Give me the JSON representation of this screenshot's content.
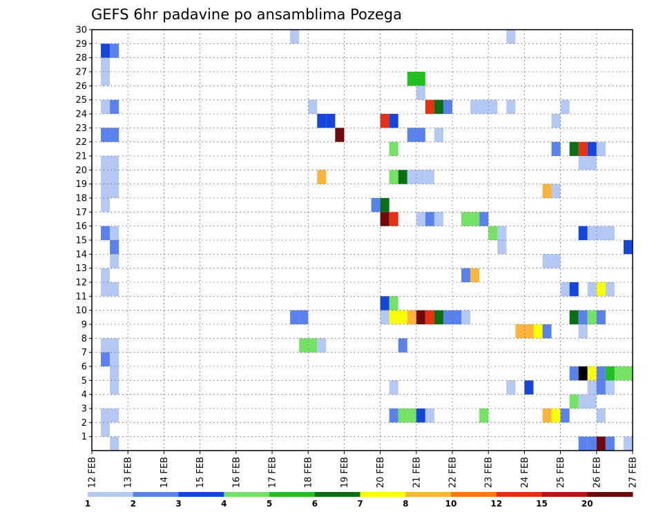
{
  "chart_data": {
    "type": "heatmap",
    "title": "GEFS 6hr padavine po ansamblima Pozega",
    "xlabel": "",
    "ylabel": "",
    "x_ticks": [
      "12 FEB",
      "13 FEB",
      "14 FEB",
      "15 FEB",
      "16 FEB",
      "17 FEB",
      "18 FEB",
      "19 FEB",
      "20 FEB",
      "21 FEB",
      "22 FEB",
      "23 FEB",
      "24 FEB",
      "25 FEB",
      "26 FEB",
      "27 FEB"
    ],
    "xlim_days": [
      12,
      27
    ],
    "y_ticks": [
      1,
      2,
      3,
      4,
      5,
      6,
      7,
      8,
      9,
      10,
      11,
      12,
      13,
      14,
      15,
      16,
      17,
      18,
      19,
      20,
      21,
      22,
      23,
      24,
      25,
      26,
      27,
      28,
      29,
      30
    ],
    "ylim": [
      0,
      30
    ],
    "grid": true,
    "steps_per_day": 4,
    "legend": {
      "placement": "bottom",
      "labels": [
        "1",
        "2",
        "3",
        "4",
        "5",
        "6",
        "7",
        "8",
        "10",
        "12",
        "15",
        "20"
      ],
      "colors": [
        "#b4c8f4",
        "#5a82ec",
        "#1446dc",
        "#74e264",
        "#20c020",
        "#0a6e14",
        "#ffff00",
        "#ffb43c",
        "#ff7814",
        "#e63214",
        "#b41414",
        "#6e0a0a"
      ]
    },
    "cells": [
      {
        "m": 30,
        "t": [
          [
            17.5,
            1
          ],
          [
            23.5,
            1
          ]
        ]
      },
      {
        "m": 29,
        "t": [
          [
            12.25,
            3
          ],
          [
            12.5,
            2
          ]
        ]
      },
      {
        "m": 28,
        "t": [
          [
            12.25,
            1
          ]
        ]
      },
      {
        "m": 27,
        "t": [
          [
            12.25,
            1
          ],
          [
            20.75,
            5
          ],
          [
            21.0,
            5
          ]
        ]
      },
      {
        "m": 26,
        "t": [
          [
            21.0,
            1
          ]
        ]
      },
      {
        "m": 25,
        "t": [
          [
            12.25,
            1
          ],
          [
            12.5,
            2
          ],
          [
            18.0,
            1
          ],
          [
            21.25,
            10
          ],
          [
            21.5,
            6
          ],
          [
            21.75,
            2
          ],
          [
            22.5,
            1
          ],
          [
            22.75,
            1
          ],
          [
            23.0,
            1
          ],
          [
            23.5,
            1
          ],
          [
            25.0,
            1
          ]
        ]
      },
      {
        "m": 24,
        "t": [
          [
            18.25,
            3
          ],
          [
            18.5,
            3
          ],
          [
            20.0,
            10
          ],
          [
            20.25,
            3
          ],
          [
            24.75,
            1
          ]
        ]
      },
      {
        "m": 23,
        "t": [
          [
            12.25,
            2
          ],
          [
            12.5,
            2
          ],
          [
            18.75,
            12
          ],
          [
            20.75,
            2
          ],
          [
            21.0,
            2
          ],
          [
            21.5,
            1
          ]
        ]
      },
      {
        "m": 22,
        "t": [
          [
            20.25,
            4
          ],
          [
            24.75,
            2
          ],
          [
            25.25,
            6
          ],
          [
            25.5,
            10
          ],
          [
            25.75,
            3
          ],
          [
            26.0,
            1
          ]
        ]
      },
      {
        "m": 21,
        "t": [
          [
            12.25,
            1
          ],
          [
            12.5,
            1
          ],
          [
            25.5,
            1
          ],
          [
            25.75,
            1
          ]
        ]
      },
      {
        "m": 20,
        "t": [
          [
            12.25,
            1
          ],
          [
            12.5,
            1
          ],
          [
            18.25,
            8
          ],
          [
            20.25,
            4
          ],
          [
            20.5,
            6
          ],
          [
            20.75,
            1
          ],
          [
            21.0,
            1
          ],
          [
            21.25,
            1
          ]
        ]
      },
      {
        "m": 19,
        "t": [
          [
            12.25,
            1
          ],
          [
            12.5,
            1
          ],
          [
            24.5,
            8
          ],
          [
            24.75,
            1
          ]
        ]
      },
      {
        "m": 18,
        "t": [
          [
            12.25,
            1
          ],
          [
            19.75,
            2
          ],
          [
            20.0,
            6
          ]
        ]
      },
      {
        "m": 17,
        "t": [
          [
            20.0,
            12
          ],
          [
            20.25,
            10
          ],
          [
            21.0,
            1
          ],
          [
            21.25,
            2
          ],
          [
            21.5,
            1
          ],
          [
            22.25,
            4
          ],
          [
            22.5,
            4
          ],
          [
            22.75,
            2
          ]
        ]
      },
      {
        "m": 16,
        "t": [
          [
            12.25,
            2
          ],
          [
            12.5,
            1
          ],
          [
            23.0,
            4
          ],
          [
            23.25,
            1
          ],
          [
            25.5,
            3
          ],
          [
            25.75,
            1
          ],
          [
            26.0,
            1
          ],
          [
            26.25,
            1
          ]
        ]
      },
      {
        "m": 15,
        "t": [
          [
            12.5,
            2
          ],
          [
            23.25,
            1
          ],
          [
            26.75,
            3
          ],
          [
            27.0,
            1
          ]
        ]
      },
      {
        "m": 14,
        "t": [
          [
            12.5,
            1
          ],
          [
            24.5,
            1
          ],
          [
            24.75,
            1
          ]
        ]
      },
      {
        "m": 13,
        "t": [
          [
            12.25,
            1
          ],
          [
            22.25,
            2
          ],
          [
            22.5,
            8
          ]
        ]
      },
      {
        "m": 12,
        "t": [
          [
            12.25,
            1
          ],
          [
            12.5,
            1
          ],
          [
            25.0,
            1
          ],
          [
            25.25,
            3
          ],
          [
            25.75,
            1
          ],
          [
            26.0,
            7
          ],
          [
            26.25,
            1
          ]
        ]
      },
      {
        "m": 11,
        "t": [
          [
            20.0,
            3
          ],
          [
            20.25,
            4
          ]
        ]
      },
      {
        "m": 10,
        "t": [
          [
            17.5,
            2
          ],
          [
            17.75,
            2
          ],
          [
            20.0,
            1
          ],
          [
            20.25,
            7
          ],
          [
            20.5,
            7
          ],
          [
            20.75,
            8
          ],
          [
            21.0,
            12
          ],
          [
            21.25,
            10
          ],
          [
            21.5,
            6
          ],
          [
            21.75,
            2
          ],
          [
            22.0,
            2
          ],
          [
            22.25,
            1
          ],
          [
            25.25,
            6
          ],
          [
            25.5,
            2
          ],
          [
            25.75,
            4
          ],
          [
            26.0,
            2
          ]
        ]
      },
      {
        "m": 9,
        "t": [
          [
            23.75,
            8
          ],
          [
            24.0,
            8
          ],
          [
            24.25,
            7
          ],
          [
            24.5,
            2
          ],
          [
            25.5,
            1
          ]
        ]
      },
      {
        "m": 8,
        "t": [
          [
            12.25,
            1
          ],
          [
            12.5,
            1
          ],
          [
            17.75,
            4
          ],
          [
            18.0,
            4
          ],
          [
            18.25,
            1
          ],
          [
            20.5,
            2
          ]
        ]
      },
      {
        "m": 7,
        "t": [
          [
            12.25,
            2
          ],
          [
            12.5,
            1
          ]
        ]
      },
      {
        "m": 6,
        "t": [
          [
            12.5,
            1
          ],
          [
            25.25,
            2
          ],
          [
            25.5,
            20
          ],
          [
            25.75,
            7
          ],
          [
            26.0,
            2
          ],
          [
            26.25,
            5
          ],
          [
            26.5,
            4
          ],
          [
            26.75,
            4
          ],
          [
            27.0,
            4
          ]
        ]
      },
      {
        "m": 5,
        "t": [
          [
            12.5,
            1
          ],
          [
            20.25,
            1
          ],
          [
            23.5,
            1
          ],
          [
            24.0,
            3
          ],
          [
            25.75,
            1
          ],
          [
            26.0,
            2
          ],
          [
            26.25,
            1
          ]
        ]
      },
      {
        "m": 4,
        "t": [
          [
            25.25,
            4
          ],
          [
            25.5,
            1
          ],
          [
            25.75,
            1
          ]
        ]
      },
      {
        "m": 3,
        "t": [
          [
            12.25,
            1
          ],
          [
            12.5,
            1
          ],
          [
            20.25,
            2
          ],
          [
            20.5,
            4
          ],
          [
            20.75,
            4
          ],
          [
            21.0,
            3
          ],
          [
            21.25,
            1
          ],
          [
            22.75,
            4
          ],
          [
            24.5,
            8
          ],
          [
            24.75,
            7
          ],
          [
            25.0,
            2
          ],
          [
            26.0,
            1
          ]
        ]
      },
      {
        "m": 2,
        "t": [
          [
            12.25,
            1
          ]
        ]
      },
      {
        "m": 1,
        "t": [
          [
            12.5,
            1
          ],
          [
            25.5,
            2
          ],
          [
            25.75,
            2
          ],
          [
            26.0,
            12
          ],
          [
            26.25,
            2
          ],
          [
            26.75,
            1
          ]
        ]
      }
    ]
  }
}
